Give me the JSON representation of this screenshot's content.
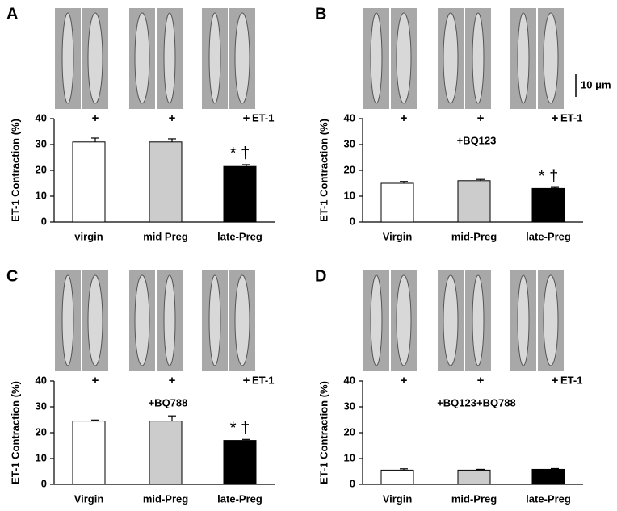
{
  "chart_data": [
    {
      "type": "bar",
      "panel": "A",
      "ylabel": "ET-1 Contraction (%)",
      "categories": [
        "virgin",
        "mid Preg",
        "late-Preg"
      ],
      "values": [
        31,
        31,
        21.5
      ],
      "errors": [
        1.5,
        1.2,
        0.7
      ],
      "colors": [
        "#ffffff",
        "#cccccc",
        "#000000"
      ],
      "ylim": [
        0,
        40
      ],
      "yticks": [
        0,
        10,
        20,
        30,
        40
      ],
      "treatment_marks": [
        "+",
        "+",
        "+"
      ],
      "treatment_label": "ET-1",
      "value_annotations": [
        null,
        null,
        "* †"
      ]
    },
    {
      "type": "bar",
      "panel": "B",
      "ylabel": "ET-1 Contraction (%)",
      "categories": [
        "Virgin",
        "mid-Preg",
        "late-Preg"
      ],
      "values": [
        15,
        16,
        13
      ],
      "errors": [
        0.7,
        0.5,
        0.4
      ],
      "colors": [
        "#ffffff",
        "#cccccc",
        "#000000"
      ],
      "ylim": [
        0,
        40
      ],
      "yticks": [
        0,
        10,
        20,
        30,
        40
      ],
      "treatment_marks": [
        "+",
        "+",
        "+"
      ],
      "treatment_label": "ET-1",
      "annotation": "+BQ123",
      "value_annotations": [
        null,
        null,
        "* †"
      ],
      "scale_bar": "10 μm"
    },
    {
      "type": "bar",
      "panel": "C",
      "ylabel": "ET-1 Contraction (%)",
      "categories": [
        "Virgin",
        "mid-Preg",
        "late-Preg"
      ],
      "values": [
        24.5,
        24.5,
        17
      ],
      "errors": [
        0.4,
        2,
        0.4
      ],
      "colors": [
        "#ffffff",
        "#cccccc",
        "#000000"
      ],
      "ylim": [
        0,
        40
      ],
      "yticks": [
        0,
        10,
        20,
        30,
        40
      ],
      "treatment_marks": [
        "+",
        "+",
        "+"
      ],
      "treatment_label": "ET-1",
      "annotation": "+BQ788",
      "value_annotations": [
        null,
        null,
        "* †"
      ]
    },
    {
      "type": "bar",
      "panel": "D",
      "ylabel": "ET-1 Contraction (%)",
      "categories": [
        "Virgin",
        "mid-Preg",
        "late-Preg"
      ],
      "values": [
        5.5,
        5.5,
        5.8
      ],
      "errors": [
        0.5,
        0.3,
        0.3
      ],
      "colors": [
        "#ffffff",
        "#cccccc",
        "#000000"
      ],
      "ylim": [
        0,
        40
      ],
      "yticks": [
        0,
        10,
        20,
        30,
        40
      ],
      "treatment_marks": [
        "+",
        "+",
        "+"
      ],
      "treatment_label": "ET-1",
      "annotation": "+BQ123+BQ788"
    }
  ]
}
